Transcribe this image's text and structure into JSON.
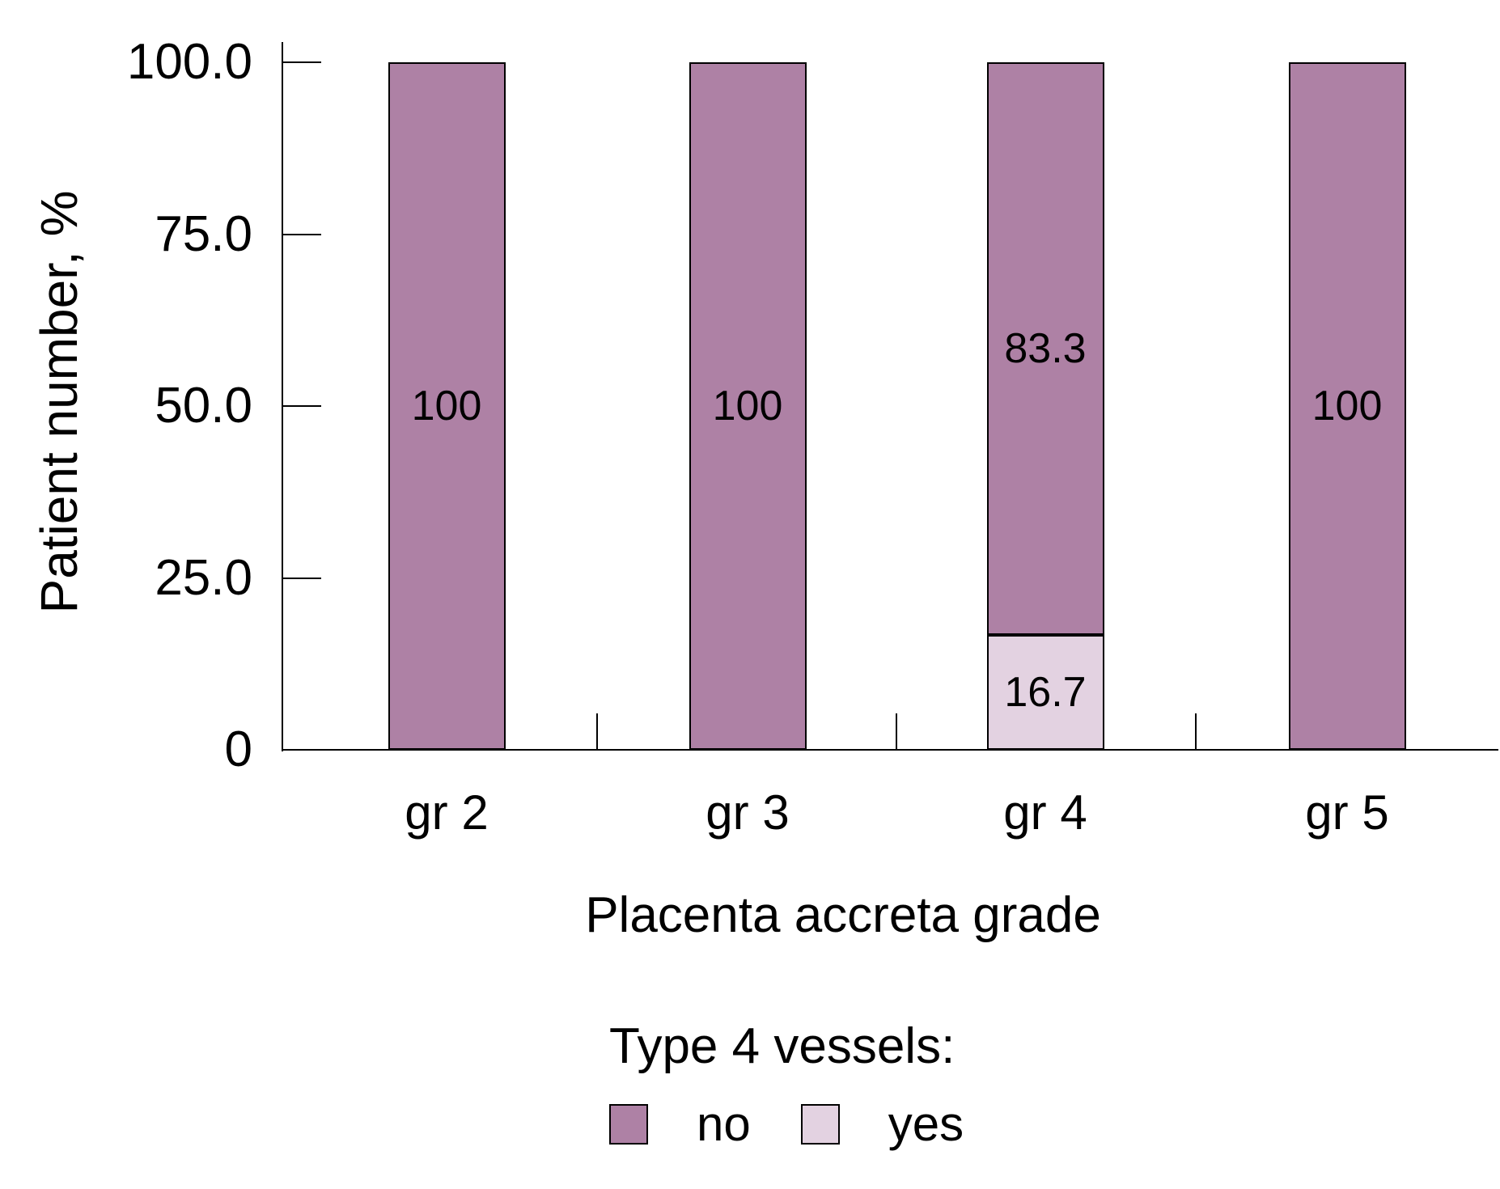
{
  "chart_data": {
    "type": "bar",
    "stacked": true,
    "title": "",
    "xlabel": "Placenta accreta grade",
    "ylabel": "Patient number, %",
    "categories": [
      "gr 2",
      "gr 3",
      "gr 4",
      "gr 5"
    ],
    "series": [
      {
        "name": "no",
        "color": "#ae81a5",
        "values": [
          100,
          100,
          83.3,
          100
        ],
        "labels": [
          "100",
          "100",
          "83.3",
          "100"
        ]
      },
      {
        "name": "yes",
        "color": "#e3d2e1",
        "values": [
          0,
          0,
          16.7,
          0
        ],
        "labels": [
          "",
          "",
          "16.7",
          ""
        ]
      }
    ],
    "stack_order_bottom_to_top": [
      "yes",
      "no"
    ],
    "ylim": [
      0,
      100
    ],
    "y_ticks": [
      {
        "value": 100,
        "label": "100.0"
      },
      {
        "value": 75,
        "label": "75.0"
      },
      {
        "value": 50,
        "label": "50.0"
      },
      {
        "value": 25,
        "label": "25.0"
      },
      {
        "value": 0,
        "label": "0"
      }
    ],
    "grid": false,
    "legend": {
      "position": "bottom",
      "title": "Type 4 vessels:",
      "items": [
        {
          "label": "no",
          "color": "#ae81a5"
        },
        {
          "label": "yes",
          "color": "#e3d2e1"
        }
      ]
    },
    "colors": {
      "axis": "#000000",
      "text": "#000000",
      "background": "#ffffff"
    }
  }
}
